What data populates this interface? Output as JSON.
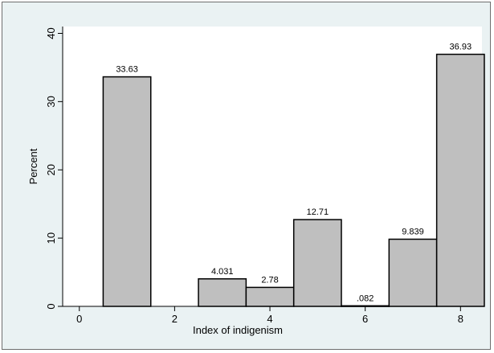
{
  "chart_data": {
    "type": "bar",
    "title": "",
    "xlabel": "Index of indigenism",
    "ylabel": "Percent",
    "xlim": [
      -0.35,
      8.45
    ],
    "ylim": [
      0,
      41
    ],
    "xticks": [
      "0",
      "2",
      "4",
      "6",
      "8"
    ],
    "yticks": [
      "0",
      "10",
      "20",
      "30",
      "40"
    ],
    "grid": false,
    "legend": "none",
    "bars": [
      {
        "x": 1,
        "value": 33.63,
        "label": "33.63"
      },
      {
        "x": 3,
        "value": 4.031,
        "label": "4.031"
      },
      {
        "x": 4,
        "value": 2.78,
        "label": "2.78"
      },
      {
        "x": 5,
        "value": 12.71,
        "label": "12.71"
      },
      {
        "x": 6,
        "value": 0.082,
        "label": ".082"
      },
      {
        "x": 7,
        "value": 9.839,
        "label": "9.839"
      },
      {
        "x": 8,
        "value": 36.93,
        "label": "36.93"
      }
    ],
    "bar_width": 1,
    "colors": {
      "bar_fill": "#bfbfbf",
      "bar_stroke": "#000000",
      "plot_bg": "#ffffff",
      "outer_bg": "#eaf2f3"
    }
  }
}
